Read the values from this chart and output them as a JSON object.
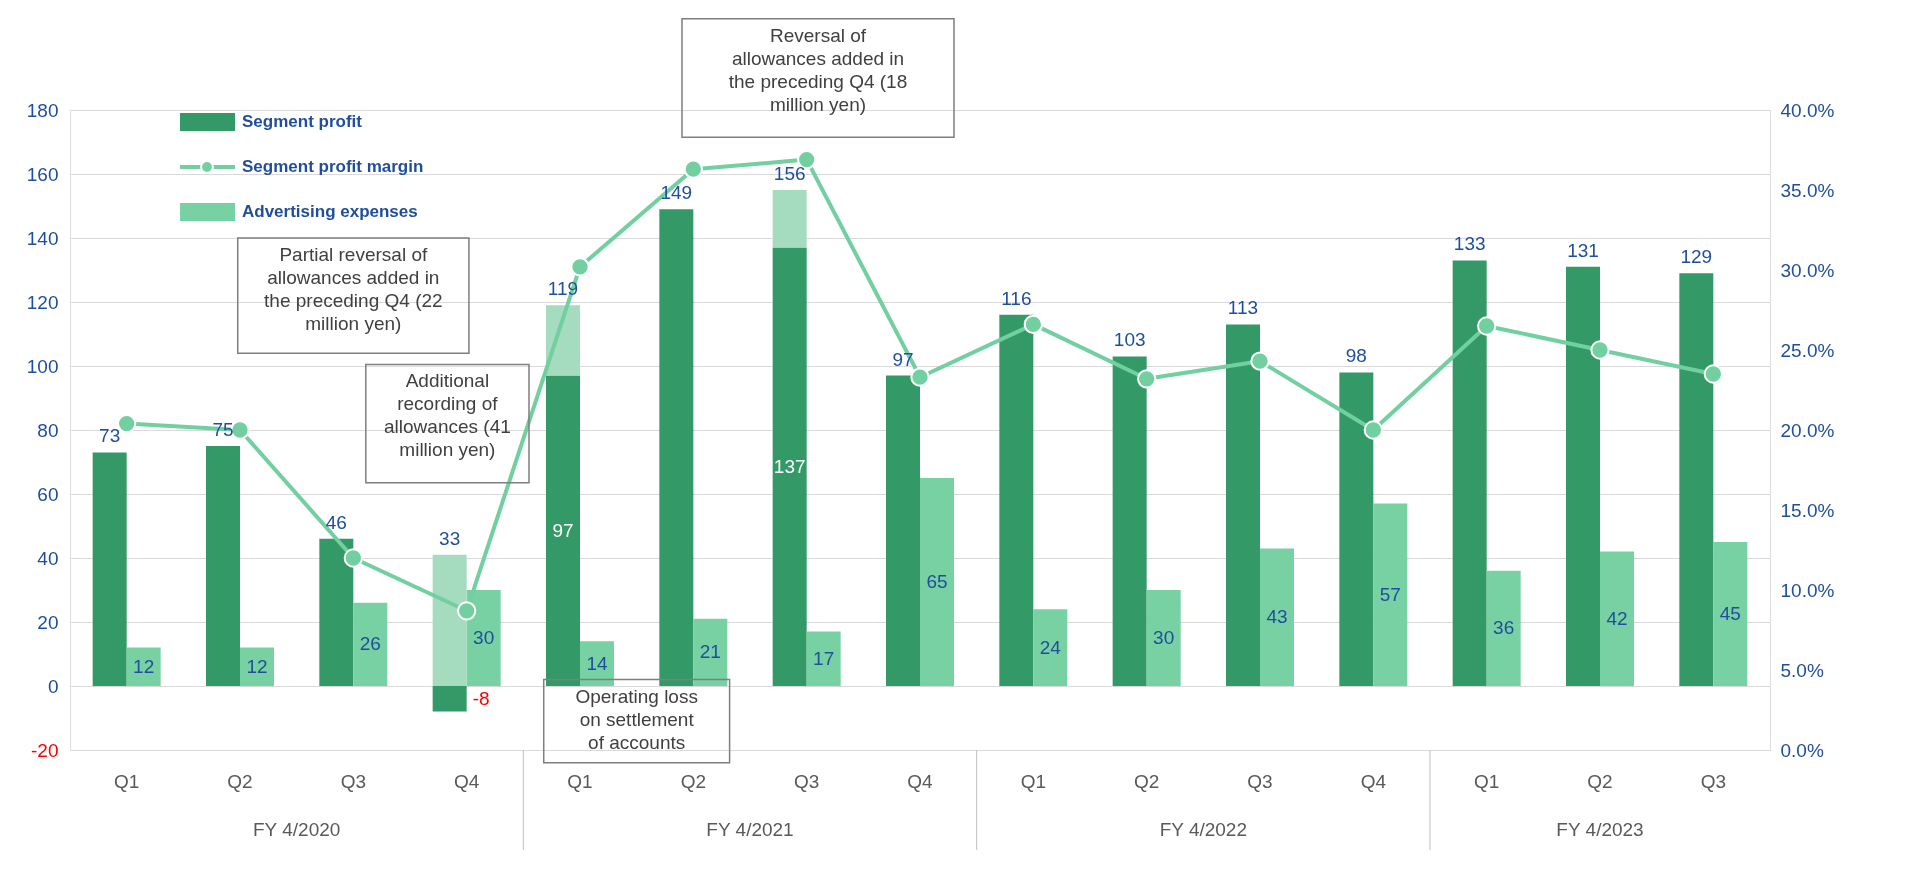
{
  "chart_data": {
    "type": "bar",
    "categories": [
      "Q1",
      "Q2",
      "Q3",
      "Q4",
      "Q1",
      "Q2",
      "Q3",
      "Q4",
      "Q1",
      "Q2",
      "Q3",
      "Q4",
      "Q1",
      "Q2",
      "Q3"
    ],
    "series": [
      {
        "name": "Segment profit",
        "color": "#339966",
        "values": [
          73,
          75,
          46,
          -8,
          97,
          149,
          137,
          97,
          116,
          103,
          113,
          98,
          133,
          131,
          129
        ],
        "value_labels": [
          "73",
          "75",
          "46",
          "-8",
          "97",
          "149",
          "137",
          "97",
          "116",
          "103",
          "113",
          "98",
          "133",
          "131",
          "129"
        ]
      },
      {
        "name": "Segment profit margin",
        "type": "line",
        "axis": "y2",
        "color": "#72d0a0",
        "values": [
          20.4,
          20.0,
          12.0,
          8.7,
          30.2,
          36.3,
          36.9,
          23.3,
          26.6,
          23.2,
          24.3,
          20.0,
          26.5,
          25.0,
          23.5
        ]
      },
      {
        "name": "Advertising expenses",
        "color": "#77d1a3",
        "values": [
          12,
          12,
          26,
          30,
          14,
          21,
          17,
          65,
          24,
          30,
          43,
          57,
          36,
          42,
          45
        ],
        "value_labels": [
          "12",
          "12",
          "26",
          "30",
          "14",
          "21",
          "17",
          "65",
          "24",
          "30",
          "43",
          "57",
          "36",
          "42",
          "45"
        ]
      },
      {
        "color": "#a5dcbf",
        "base": [
          null,
          null,
          null,
          0,
          97,
          null,
          137,
          null,
          null,
          null,
          null,
          null,
          null,
          null,
          null
        ],
        "values": [
          null,
          null,
          null,
          41,
          22,
          null,
          18,
          null,
          null,
          null,
          null,
          null,
          null,
          null,
          null
        ]
      }
    ],
    "ylim": [
      -20,
      180
    ],
    "yticks": [
      -20,
      0,
      20,
      40,
      60,
      80,
      100,
      120,
      140,
      160,
      180
    ],
    "y2lim": [
      0,
      40
    ],
    "y2ticks": [
      {
        "value": 0,
        "label": "0.0%"
      },
      {
        "value": 5,
        "label": "5.0%"
      },
      {
        "value": 10,
        "label": "10.0%"
      },
      {
        "value": 15,
        "label": "15.0%"
      },
      {
        "value": 20,
        "label": "20.0%"
      },
      {
        "value": 25,
        "label": "25.0%"
      },
      {
        "value": 30,
        "label": "30.0%"
      },
      {
        "value": 35,
        "label": "35.0%"
      },
      {
        "value": 40,
        "label": "40.0%"
      }
    ],
    "annotations": [
      "Reversal of allowances added in the preceding Q4 (18 million yen)",
      "Partial reversal of allowances added in the preceding Q4 (22 million yen)",
      "Additional recording of allowances (41 million yen)",
      "Operating loss on settlement of accounts",
      "33",
      "119",
      "156",
      "FY 4/2020",
      "FY 4/2021",
      "FY 4/2022",
      "FY 4/2023"
    ],
    "grid": "y",
    "legend": "top left",
    "marker": "circle",
    "line_style": "solid"
  }
}
